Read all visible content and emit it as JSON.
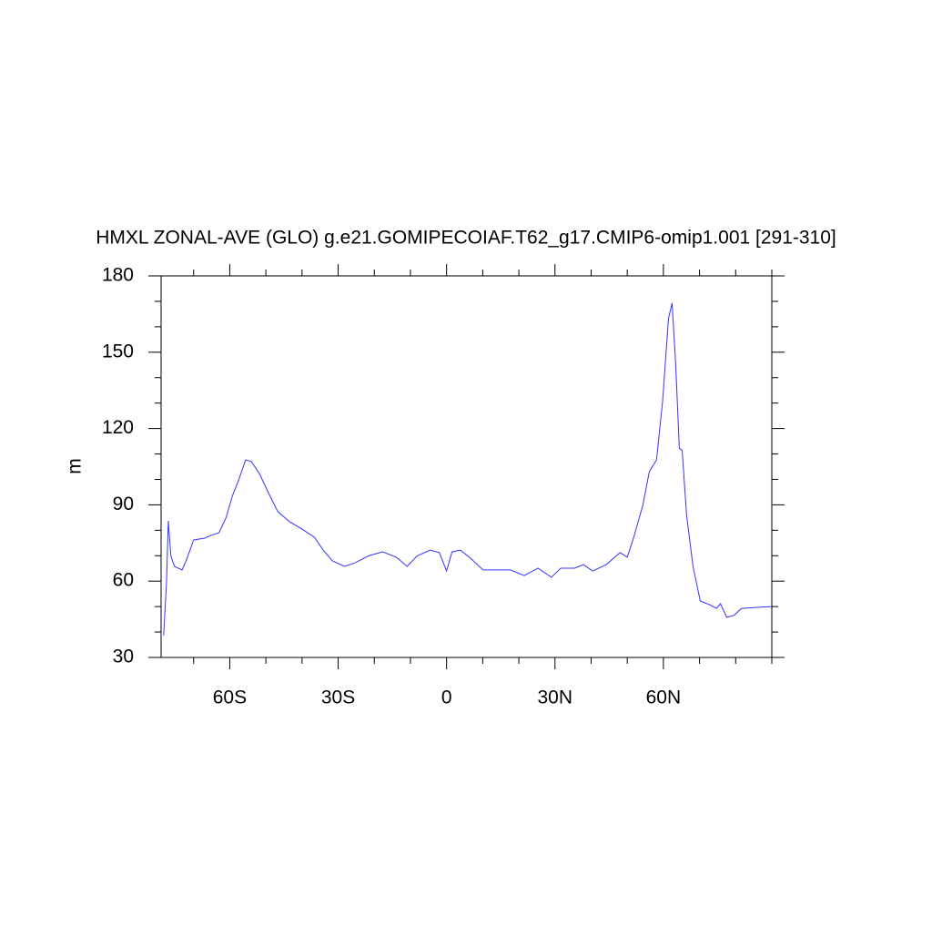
{
  "chart_data": {
    "type": "line",
    "title": "HMXL ZONAL-AVE (GLO) g.e21.GOMIPECOIAF.T62_g17.CMIP6-omip1.001 [291-310]",
    "ylabel": "m",
    "xlim": [
      -79,
      90
    ],
    "ylim": [
      30,
      180
    ],
    "xticks": [
      {
        "value": -60,
        "label": "60S"
      },
      {
        "value": -30,
        "label": "30S"
      },
      0,
      {
        "value": 30,
        "label": "30N"
      },
      {
        "value": 60,
        "label": "60N"
      }
    ],
    "xminorticks": [
      -70,
      -50,
      -40,
      -20,
      -10,
      10,
      20,
      40,
      50,
      70,
      80,
      90
    ],
    "yticks": [
      30,
      60,
      90,
      120,
      150,
      180
    ],
    "yminorticks": [
      40,
      50,
      70,
      80,
      100,
      110,
      130,
      140,
      160,
      170
    ],
    "series": [
      {
        "color": "#3333ff",
        "x": [
          -78.3,
          -77.5,
          -77,
          -76.3,
          -75.3,
          -73.2,
          -72,
          -70,
          -66.9,
          -65.2,
          -63,
          -61,
          -59.3,
          -57.6,
          -55.6,
          -54,
          -51.8,
          -49.2,
          -46.7,
          -43.4,
          -40.4,
          -36.6,
          -34,
          -31.6,
          -28.3,
          -25.3,
          -21.5,
          -17.7,
          -13.9,
          -10.9,
          -8.1,
          -4.5,
          -2,
          0,
          1.5,
          3.8,
          6.3,
          10.1,
          13.9,
          17.7,
          21.5,
          25.3,
          29,
          31.6,
          35.4,
          37.9,
          40.4,
          44.2,
          48,
          50,
          51.8,
          54.3,
          56.1,
          58.1,
          59.8,
          61.4,
          62.4,
          63.4,
          64.4,
          65.2,
          66.4,
          68.2,
          70.2,
          72.7,
          74.7,
          75.8,
          77.5,
          79.5,
          81.6,
          85.9,
          90
        ],
        "values": [
          38.6,
          59.4,
          83.7,
          70,
          65.8,
          64.4,
          68.3,
          76.2,
          76.9,
          78,
          79,
          85,
          93.4,
          99.5,
          107.7,
          107,
          102.3,
          94.4,
          87.3,
          83.3,
          80.8,
          77.3,
          71.9,
          68,
          65.8,
          67.2,
          70,
          71.5,
          69.4,
          65.8,
          70,
          72.2,
          71.2,
          64,
          71.5,
          72.2,
          69.4,
          64.4,
          64.4,
          64.4,
          62.2,
          65.1,
          61.5,
          65.1,
          65.1,
          66.5,
          64,
          66.5,
          71.2,
          69.4,
          77.3,
          89.8,
          103,
          107.7,
          131,
          163.2,
          169.3,
          145.3,
          112.3,
          111.3,
          86.2,
          65.8,
          52.2,
          50.8,
          49.3,
          51.1,
          45.8,
          46.5,
          49.3,
          49.7,
          50
        ]
      }
    ]
  }
}
